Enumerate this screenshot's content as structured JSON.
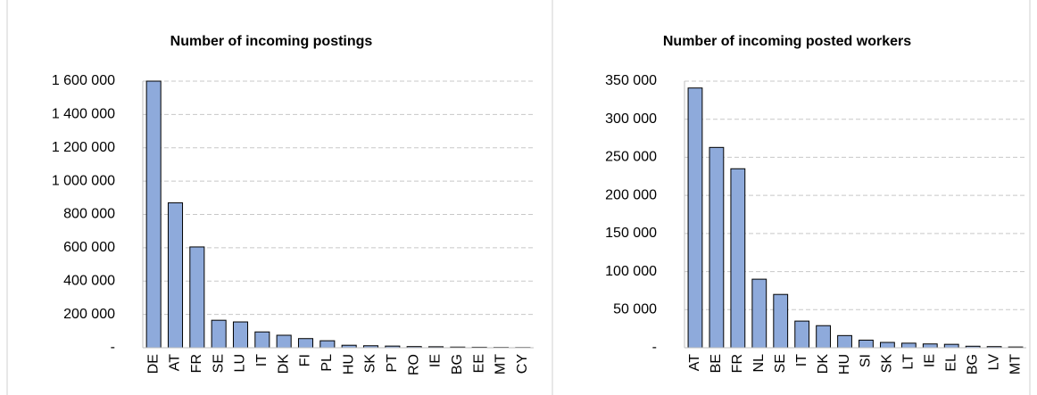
{
  "chart_data": [
    {
      "type": "bar",
      "title": "Number of incoming postings",
      "categories": [
        "DE",
        "AT",
        "FR",
        "SE",
        "LU",
        "IT",
        "DK",
        "FI",
        "PL",
        "HU",
        "SK",
        "PT",
        "RO",
        "IE",
        "BG",
        "EE",
        "MT",
        "CY"
      ],
      "values": [
        1600000,
        870000,
        605000,
        165000,
        155000,
        95000,
        75000,
        55000,
        42000,
        15000,
        12000,
        10000,
        7000,
        6000,
        4000,
        3000,
        2000,
        1500
      ],
      "color": "#8eaadb",
      "ylim": [
        0,
        1600000
      ],
      "yticks": [
        {
          "value": 0,
          "label": "-"
        },
        {
          "value": 200000,
          "label": "200 000"
        },
        {
          "value": 400000,
          "label": "400 000"
        },
        {
          "value": 600000,
          "label": "600 000"
        },
        {
          "value": 800000,
          "label": "800 000"
        },
        {
          "value": 1000000,
          "label": "1 000 000"
        },
        {
          "value": 1200000,
          "label": "1 200 000"
        },
        {
          "value": 1400000,
          "label": "1 400 000"
        },
        {
          "value": 1600000,
          "label": "1 600 000"
        }
      ],
      "grid": true
    },
    {
      "type": "bar",
      "title": "Number of incoming posted workers",
      "categories": [
        "AT",
        "BE",
        "FR",
        "NL",
        "SE",
        "IT",
        "DK",
        "HU",
        "SI",
        "SK",
        "LT",
        "IE",
        "EL",
        "BG",
        "LV",
        "MT"
      ],
      "values": [
        341000,
        263000,
        235000,
        90000,
        70000,
        35000,
        29000,
        16000,
        10000,
        7000,
        6000,
        5000,
        4500,
        2000,
        1500,
        1000
      ],
      "color": "#8eaadb",
      "ylim": [
        0,
        350000
      ],
      "yticks": [
        {
          "value": 0,
          "label": "-"
        },
        {
          "value": 50000,
          "label": "50 000"
        },
        {
          "value": 100000,
          "label": "100 000"
        },
        {
          "value": 150000,
          "label": "150 000"
        },
        {
          "value": 200000,
          "label": "200 000"
        },
        {
          "value": 250000,
          "label": "250 000"
        },
        {
          "value": 300000,
          "label": "300 000"
        },
        {
          "value": 350000,
          "label": "350 000"
        }
      ],
      "grid": true
    }
  ]
}
